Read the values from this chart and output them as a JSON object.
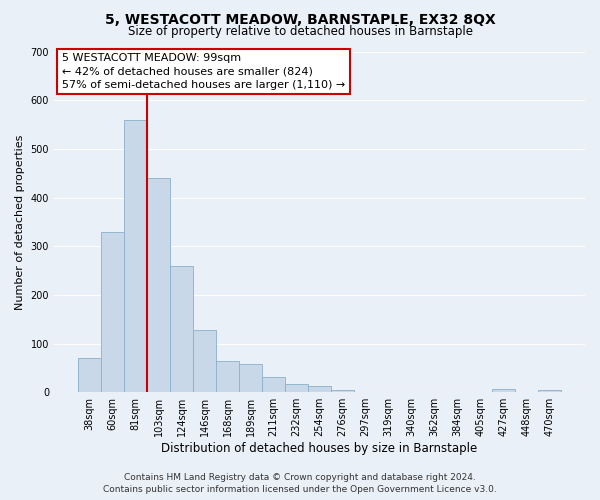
{
  "title": "5, WESTACOTT MEADOW, BARNSTAPLE, EX32 8QX",
  "subtitle": "Size of property relative to detached houses in Barnstaple",
  "xlabel": "Distribution of detached houses by size in Barnstaple",
  "ylabel": "Number of detached properties",
  "bar_labels": [
    "38sqm",
    "60sqm",
    "81sqm",
    "103sqm",
    "124sqm",
    "146sqm",
    "168sqm",
    "189sqm",
    "211sqm",
    "232sqm",
    "254sqm",
    "276sqm",
    "297sqm",
    "319sqm",
    "340sqm",
    "362sqm",
    "384sqm",
    "405sqm",
    "427sqm",
    "448sqm",
    "470sqm"
  ],
  "bar_values": [
    70,
    330,
    560,
    440,
    260,
    127,
    65,
    57,
    32,
    17,
    12,
    5,
    0,
    0,
    0,
    0,
    0,
    0,
    7,
    0,
    5
  ],
  "bar_color": "#c8d8e8",
  "bar_edgecolor": "#8ab0cc",
  "vline_color": "#cc0000",
  "ylim": [
    0,
    700
  ],
  "yticks": [
    0,
    100,
    200,
    300,
    400,
    500,
    600,
    700
  ],
  "annotation_title": "5 WESTACOTT MEADOW: 99sqm",
  "annotation_line1": "← 42% of detached houses are smaller (824)",
  "annotation_line2": "57% of semi-detached houses are larger (1,110) →",
  "annotation_box_color": "#ffffff",
  "annotation_box_edgecolor": "#cc0000",
  "footnote1": "Contains HM Land Registry data © Crown copyright and database right 2024.",
  "footnote2": "Contains public sector information licensed under the Open Government Licence v3.0.",
  "bg_color": "#eaf0f8",
  "grid_color": "#ffffff",
  "title_fontsize": 10,
  "subtitle_fontsize": 8.5,
  "xlabel_fontsize": 8.5,
  "ylabel_fontsize": 8,
  "tick_fontsize": 7,
  "footnote_fontsize": 6.5
}
